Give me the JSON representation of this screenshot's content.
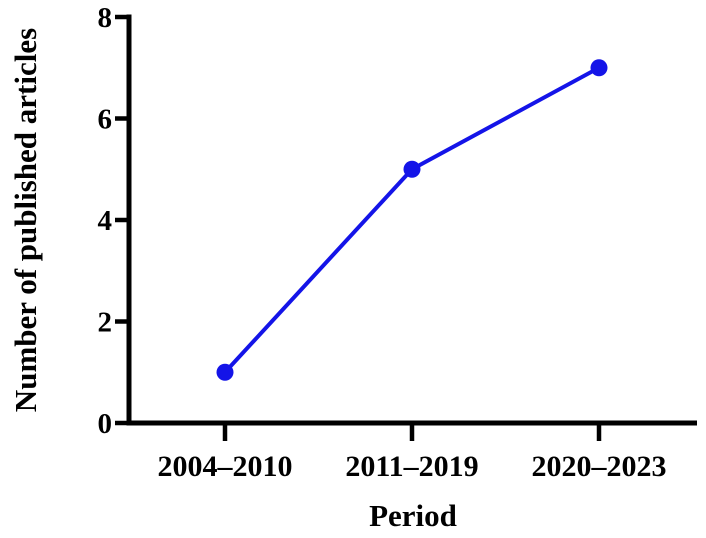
{
  "chart_data": {
    "type": "line",
    "categories": [
      "2004–2010",
      "2011–2019",
      "2020–2023"
    ],
    "values": [
      1,
      5,
      7
    ],
    "title": "",
    "xlabel": "Period",
    "ylabel": "Number of published articles",
    "ylim": [
      0,
      8
    ],
    "yticks": [
      0,
      2,
      4,
      6,
      8
    ],
    "grid": false,
    "legend": "none",
    "colors": {
      "line": "#1414e8",
      "marker": "#1414e8",
      "axis": "#000000",
      "text": "#000000",
      "background": "#ffffff"
    }
  }
}
